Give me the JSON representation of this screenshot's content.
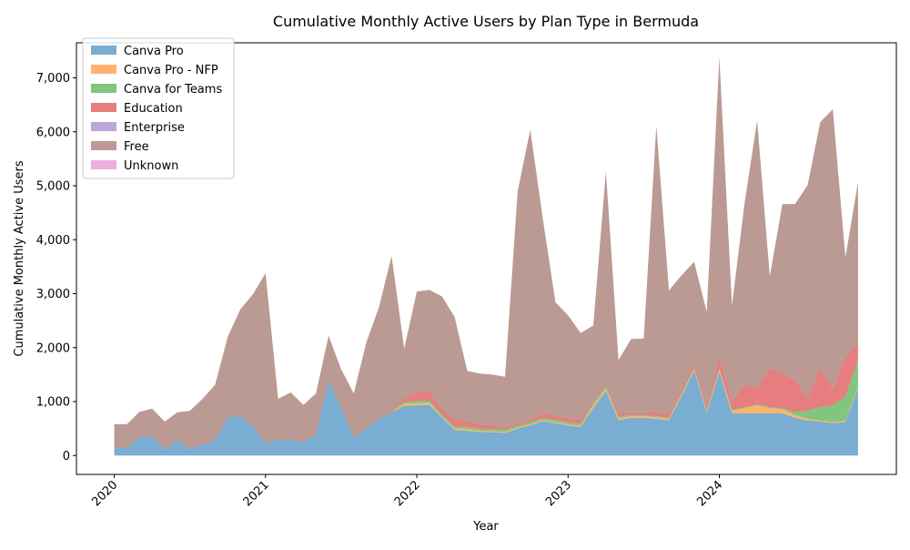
{
  "chart_data": {
    "type": "area",
    "stacked": true,
    "title": "Cumulative Monthly Active Users by Plan Type in Bermuda",
    "xlabel": "Year",
    "ylabel": "Cumulative Monthly Active Users",
    "xlim": [
      2019.75,
      2025.17
    ],
    "ylim": [
      -350,
      7650
    ],
    "x_ticks": [
      2020,
      2021,
      2022,
      2023,
      2024
    ],
    "x_tick_labels": [
      "2020",
      "2021",
      "2022",
      "2023",
      "2024"
    ],
    "y_ticks": [
      0,
      1000,
      2000,
      3000,
      4000,
      5000,
      6000,
      7000
    ],
    "y_tick_labels": [
      "0",
      "1,000",
      "2,000",
      "3,000",
      "4,000",
      "5,000",
      "6,000",
      "7,000"
    ],
    "grid": false,
    "legend_position": "upper-left",
    "start": "2020-01",
    "months": [
      "2020-01",
      "2020-02",
      "2020-03",
      "2020-04",
      "2020-05",
      "2020-06",
      "2020-07",
      "2020-08",
      "2020-09",
      "2020-10",
      "2020-11",
      "2020-12",
      "2021-01",
      "2021-02",
      "2021-03",
      "2021-04",
      "2021-05",
      "2021-06",
      "2021-07",
      "2021-08",
      "2021-09",
      "2021-10",
      "2021-11",
      "2021-12",
      "2022-01",
      "2022-02",
      "2022-03",
      "2022-04",
      "2022-05",
      "2022-06",
      "2022-07",
      "2022-08",
      "2022-09",
      "2022-10",
      "2022-11",
      "2022-12",
      "2023-01",
      "2023-02",
      "2023-03",
      "2023-04",
      "2023-05",
      "2023-06",
      "2023-07",
      "2023-08",
      "2023-09",
      "2023-10",
      "2023-11",
      "2023-12",
      "2024-01",
      "2024-02",
      "2024-03",
      "2024-04",
      "2024-05",
      "2024-06",
      "2024-07",
      "2024-08",
      "2024-09",
      "2024-10",
      "2024-11",
      "2024-12"
    ],
    "series": [
      {
        "name": "Canva Pro",
        "color": "#1f77b4",
        "values": [
          150,
          140,
          340,
          360,
          120,
          280,
          130,
          200,
          280,
          700,
          730,
          540,
          230,
          290,
          290,
          250,
          390,
          1400,
          880,
          330,
          500,
          680,
          800,
          920,
          930,
          940,
          700,
          470,
          460,
          440,
          430,
          420,
          500,
          560,
          640,
          600,
          560,
          530,
          880,
          1200,
          650,
          700,
          700,
          680,
          650,
          1100,
          1570,
          780,
          1550,
          780,
          780,
          780,
          780,
          780,
          700,
          650,
          630,
          600,
          620,
          1240
        ]
      },
      {
        "name": "Canva Pro - NFP",
        "color": "#ff7f0e",
        "values": [
          0,
          0,
          0,
          0,
          0,
          0,
          0,
          0,
          0,
          0,
          0,
          0,
          0,
          0,
          0,
          0,
          0,
          0,
          0,
          0,
          0,
          0,
          0,
          40,
          40,
          40,
          20,
          30,
          30,
          20,
          20,
          20,
          20,
          20,
          20,
          20,
          20,
          20,
          50,
          50,
          40,
          30,
          30,
          30,
          30,
          30,
          30,
          30,
          50,
          50,
          100,
          150,
          100,
          80,
          50,
          30,
          20,
          20,
          20,
          30
        ]
      },
      {
        "name": "Canva for Teams",
        "color": "#2ca02c",
        "values": [
          0,
          0,
          0,
          0,
          0,
          0,
          0,
          0,
          0,
          0,
          0,
          0,
          0,
          0,
          0,
          0,
          0,
          0,
          0,
          0,
          0,
          0,
          0,
          40,
          40,
          40,
          40,
          40,
          40,
          40,
          40,
          40,
          40,
          40,
          40,
          40,
          40,
          40,
          40,
          40,
          40,
          20,
          20,
          20,
          20,
          30,
          30,
          20,
          20,
          20,
          20,
          20,
          20,
          20,
          60,
          150,
          250,
          310,
          450,
          500
        ]
      },
      {
        "name": "Education",
        "color": "#d62728",
        "values": [
          0,
          0,
          0,
          0,
          0,
          0,
          0,
          0,
          0,
          0,
          0,
          0,
          0,
          0,
          0,
          0,
          0,
          0,
          0,
          0,
          0,
          0,
          0,
          60,
          160,
          160,
          100,
          130,
          100,
          80,
          60,
          40,
          40,
          40,
          80,
          80,
          80,
          60,
          20,
          20,
          60,
          40,
          40,
          60,
          60,
          60,
          80,
          50,
          200,
          170,
          400,
          300,
          720,
          650,
          580,
          230,
          730,
          290,
          730,
          310
        ]
      },
      {
        "name": "Enterprise",
        "color": "#9467bd",
        "values": [
          0,
          0,
          0,
          0,
          0,
          0,
          0,
          0,
          0,
          0,
          0,
          0,
          0,
          0,
          0,
          0,
          0,
          0,
          0,
          0,
          0,
          0,
          0,
          0,
          0,
          0,
          0,
          0,
          0,
          0,
          0,
          0,
          0,
          0,
          0,
          0,
          0,
          0,
          0,
          0,
          0,
          0,
          0,
          0,
          0,
          0,
          0,
          0,
          0,
          0,
          0,
          0,
          0,
          0,
          0,
          0,
          0,
          0,
          0,
          0
        ]
      },
      {
        "name": "Free",
        "color": "#8c564b",
        "values": [
          430,
          440,
          470,
          510,
          510,
          520,
          700,
          850,
          1030,
          1500,
          1980,
          2450,
          3150,
          760,
          880,
          690,
          760,
          820,
          720,
          820,
          1600,
          2070,
          2900,
          920,
          1870,
          1890,
          2090,
          1900,
          940,
          940,
          950,
          940,
          4300,
          5380,
          3600,
          2100,
          1900,
          1620,
          1420,
          3960,
          980,
          1370,
          1380,
          5320,
          2300,
          2120,
          1880,
          1780,
          5560,
          1760,
          3380,
          4960,
          1700,
          3130,
          3270,
          3950,
          4550,
          5200,
          1850,
          2990
        ]
      },
      {
        "name": "Unknown",
        "color": "#e377c2",
        "values": [
          0,
          0,
          0,
          0,
          0,
          0,
          0,
          0,
          0,
          0,
          0,
          0,
          0,
          0,
          0,
          0,
          0,
          0,
          0,
          0,
          0,
          0,
          0,
          0,
          0,
          0,
          0,
          0,
          0,
          0,
          0,
          0,
          0,
          0,
          0,
          0,
          0,
          0,
          0,
          0,
          0,
          0,
          0,
          0,
          0,
          0,
          0,
          0,
          0,
          0,
          0,
          0,
          0,
          0,
          0,
          0,
          0,
          0,
          0,
          0
        ]
      }
    ]
  }
}
